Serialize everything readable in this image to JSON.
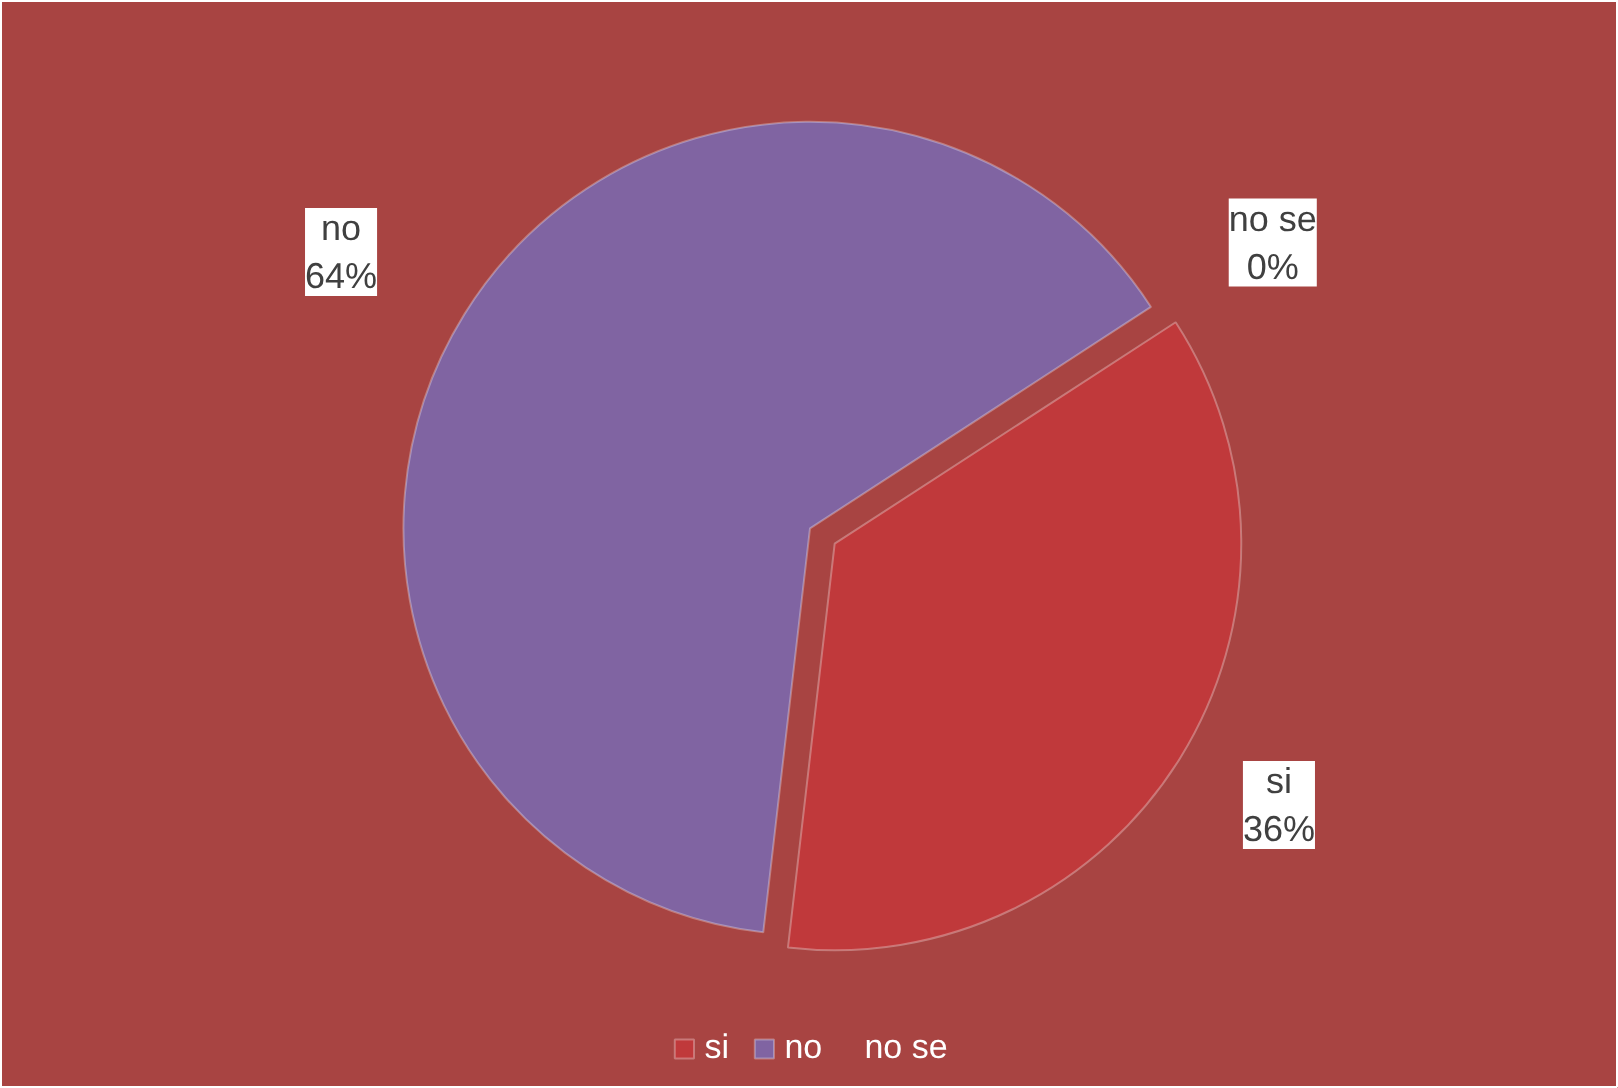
{
  "chart_data": {
    "type": "pie",
    "categories": [
      "si",
      "no",
      "no se"
    ],
    "values": [
      36,
      64,
      0
    ],
    "colors": [
      "#c0393b",
      "#8064a2",
      "#f79646"
    ],
    "value_labels": [
      "36%",
      "64%",
      "0%"
    ],
    "legend": "bottom"
  }
}
